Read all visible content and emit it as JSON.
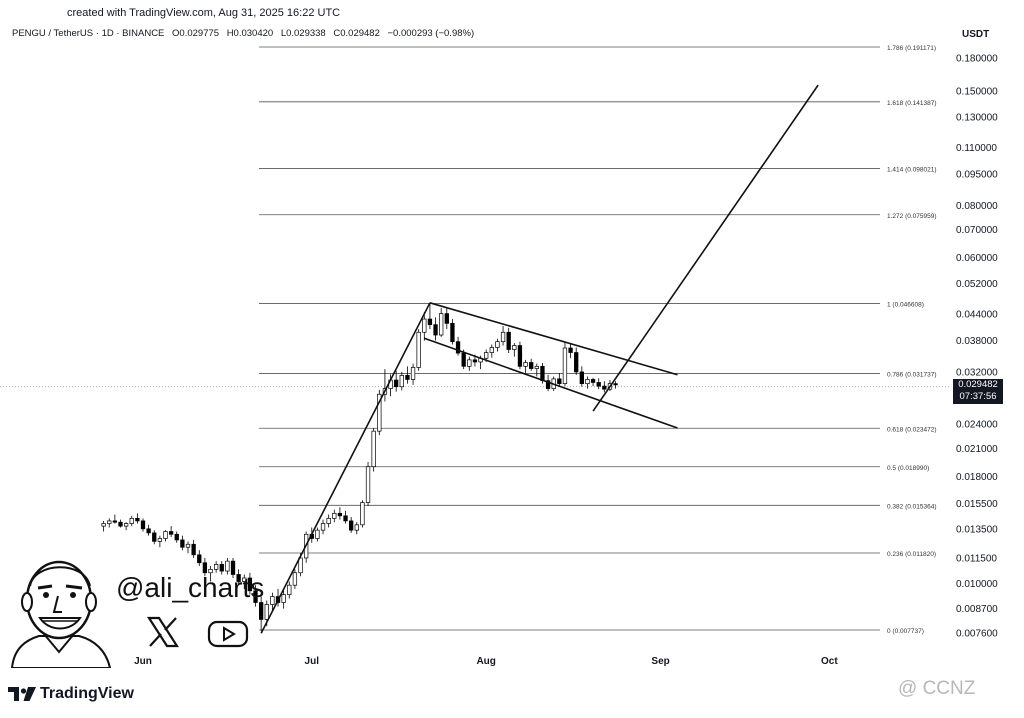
{
  "caption": "created with TradingView.com, Aug 31, 2025 16:22 UTC",
  "legend": {
    "symbol": "PENGU / TetherUS · 1D · BINANCE",
    "open": "O0.029775",
    "high": "H0.030420",
    "low": "L0.029338",
    "close": "C0.029482",
    "change": "−0.000293 (−0.98%)"
  },
  "currency": "USDT",
  "price_tag": {
    "price": "0.029482",
    "countdown": "07:37:56"
  },
  "brand": "TradingView",
  "handle": "@ali_charts",
  "watermark": "@ CCNZ",
  "icons": {
    "x": "x-logo-icon",
    "youtube": "youtube-play-icon",
    "avatar": "cartoon-avatar-icon",
    "brand": "tradingview-logo-icon"
  },
  "colors": {
    "candle_up": "#ffffff",
    "candle_down": "#000000",
    "lines": "#555555",
    "tag_bg": "#131722"
  },
  "chart_data": {
    "type": "candlestick",
    "scale": "log",
    "ylim": [
      0.0074,
      0.2
    ],
    "y_ticks": [
      "0.180000",
      "0.150000",
      "0.130000",
      "0.110000",
      "0.095000",
      "0.080000",
      "0.070000",
      "0.060000",
      "0.052000",
      "0.044000",
      "0.038000",
      "0.032000",
      "0.024000",
      "0.021000",
      "0.018000",
      "0.015500",
      "0.013500",
      "0.011500",
      "0.010000",
      "0.008700",
      "0.007600"
    ],
    "x_ticks": [
      {
        "label": "Jun",
        "date": "2025-06-01"
      },
      {
        "label": "Jul",
        "date": "2025-07-01"
      },
      {
        "label": "Aug",
        "date": "2025-08-01"
      },
      {
        "label": "Sep",
        "date": "2025-09-01"
      },
      {
        "label": "Oct",
        "date": "2025-10-01"
      }
    ],
    "fib_levels": [
      {
        "label": "1.786 (0.191171)",
        "value": 0.191171
      },
      {
        "label": "1.618 (0.141387)",
        "value": 0.141387
      },
      {
        "label": "1.414 (0.098021)",
        "value": 0.098021
      },
      {
        "label": "1.272 (0.075959)",
        "value": 0.075959
      },
      {
        "label": "1 (0.046608)",
        "value": 0.046608
      },
      {
        "label": "0.786 (0.031737)",
        "value": 0.031737
      },
      {
        "label": "0.618 (0.023472)",
        "value": 0.023472
      },
      {
        "label": "0.5 (0.018990)",
        "value": 0.01899
      },
      {
        "label": "0.382 (0.015364)",
        "value": 0.015364
      },
      {
        "label": "0.236 (0.011820)",
        "value": 0.01182
      },
      {
        "label": "0 (0.007737)",
        "value": 0.007737
      }
    ],
    "last_price": 0.029482,
    "trend_lines": [
      {
        "from": [
          "2025-06-22",
          0.0076
        ],
        "to": [
          "2025-07-22",
          0.0468
        ]
      },
      {
        "from": [
          "2025-07-22",
          0.0468
        ],
        "to": [
          "2025-09-04",
          0.0315
        ]
      },
      {
        "from": [
          "2025-07-21",
          0.0385
        ],
        "to": [
          "2025-09-04",
          0.0235
        ]
      },
      {
        "from": [
          "2025-08-20",
          0.0258
        ],
        "to": [
          "2025-09-29",
          0.155
        ]
      }
    ],
    "candles": [
      [
        "2025-05-25",
        0.0137,
        0.0141,
        0.0133,
        0.0139
      ],
      [
        "2025-05-26",
        0.0139,
        0.0143,
        0.0136,
        0.0141
      ],
      [
        "2025-05-27",
        0.0141,
        0.0146,
        0.0139,
        0.014
      ],
      [
        "2025-05-28",
        0.014,
        0.0142,
        0.0136,
        0.0137
      ],
      [
        "2025-05-29",
        0.0137,
        0.014,
        0.0134,
        0.0139
      ],
      [
        "2025-05-30",
        0.0139,
        0.0145,
        0.0137,
        0.0143
      ],
      [
        "2025-05-31",
        0.0143,
        0.0147,
        0.0139,
        0.0141
      ],
      [
        "2025-06-01",
        0.0141,
        0.0143,
        0.0133,
        0.0135
      ],
      [
        "2025-06-02",
        0.0135,
        0.0138,
        0.013,
        0.0132
      ],
      [
        "2025-06-03",
        0.0132,
        0.0134,
        0.0124,
        0.0126
      ],
      [
        "2025-06-04",
        0.0126,
        0.013,
        0.0122,
        0.0128
      ],
      [
        "2025-06-05",
        0.0128,
        0.0134,
        0.0126,
        0.0133
      ],
      [
        "2025-06-06",
        0.0133,
        0.0137,
        0.0129,
        0.0131
      ],
      [
        "2025-06-07",
        0.0131,
        0.0133,
        0.0125,
        0.0127
      ],
      [
        "2025-06-08",
        0.0127,
        0.013,
        0.012,
        0.0122
      ],
      [
        "2025-06-09",
        0.0122,
        0.0126,
        0.0118,
        0.0124
      ],
      [
        "2025-06-10",
        0.0124,
        0.0127,
        0.0115,
        0.0117
      ],
      [
        "2025-06-11",
        0.0117,
        0.012,
        0.011,
        0.0112
      ],
      [
        "2025-06-12",
        0.0112,
        0.0115,
        0.0104,
        0.0106
      ],
      [
        "2025-06-13",
        0.0106,
        0.011,
        0.0101,
        0.0108
      ],
      [
        "2025-06-14",
        0.0108,
        0.0113,
        0.0106,
        0.0111
      ],
      [
        "2025-06-15",
        0.0111,
        0.0113,
        0.0105,
        0.0107
      ],
      [
        "2025-06-16",
        0.0107,
        0.0115,
        0.0105,
        0.0113
      ],
      [
        "2025-06-17",
        0.0113,
        0.0115,
        0.0103,
        0.0105
      ],
      [
        "2025-06-18",
        0.0105,
        0.0108,
        0.0099,
        0.0101
      ],
      [
        "2025-06-19",
        0.0101,
        0.0105,
        0.0097,
        0.0103
      ],
      [
        "2025-06-20",
        0.0103,
        0.0106,
        0.0094,
        0.0096
      ],
      [
        "2025-06-21",
        0.0096,
        0.0099,
        0.0088,
        0.009
      ],
      [
        "2025-06-22",
        0.009,
        0.0093,
        0.0077,
        0.0082
      ],
      [
        "2025-06-23",
        0.0082,
        0.0091,
        0.0079,
        0.0089
      ],
      [
        "2025-06-24",
        0.0089,
        0.0095,
        0.0086,
        0.0093
      ],
      [
        "2025-06-25",
        0.0093,
        0.0097,
        0.0088,
        0.009
      ],
      [
        "2025-06-26",
        0.009,
        0.0096,
        0.0087,
        0.0094
      ],
      [
        "2025-06-27",
        0.0094,
        0.0101,
        0.0092,
        0.0099
      ],
      [
        "2025-06-28",
        0.0099,
        0.0108,
        0.0097,
        0.0106
      ],
      [
        "2025-06-29",
        0.0106,
        0.0118,
        0.0104,
        0.0115
      ],
      [
        "2025-06-30",
        0.0115,
        0.0133,
        0.0112,
        0.0131
      ],
      [
        "2025-07-01",
        0.0131,
        0.0136,
        0.0125,
        0.0128
      ],
      [
        "2025-07-02",
        0.0128,
        0.0136,
        0.0126,
        0.0134
      ],
      [
        "2025-07-03",
        0.0134,
        0.0142,
        0.0131,
        0.0139
      ],
      [
        "2025-07-04",
        0.0139,
        0.0146,
        0.0136,
        0.0143
      ],
      [
        "2025-07-05",
        0.0143,
        0.015,
        0.014,
        0.0147
      ],
      [
        "2025-07-06",
        0.0147,
        0.0152,
        0.0142,
        0.0145
      ],
      [
        "2025-07-07",
        0.0145,
        0.0149,
        0.0139,
        0.0141
      ],
      [
        "2025-07-08",
        0.0141,
        0.0144,
        0.0132,
        0.0134
      ],
      [
        "2025-07-09",
        0.0134,
        0.014,
        0.0131,
        0.0138
      ],
      [
        "2025-07-10",
        0.0138,
        0.0158,
        0.0136,
        0.0156
      ],
      [
        "2025-07-11",
        0.0156,
        0.0195,
        0.0153,
        0.019
      ],
      [
        "2025-07-12",
        0.019,
        0.0235,
        0.0185,
        0.0231
      ],
      [
        "2025-07-13",
        0.0231,
        0.029,
        0.0226,
        0.0283
      ],
      [
        "2025-07-14",
        0.0283,
        0.0325,
        0.0272,
        0.0292
      ],
      [
        "2025-07-15",
        0.0292,
        0.0316,
        0.028,
        0.0306
      ],
      [
        "2025-07-16",
        0.0306,
        0.0322,
        0.0287,
        0.0295
      ],
      [
        "2025-07-17",
        0.0295,
        0.032,
        0.0289,
        0.0314
      ],
      [
        "2025-07-18",
        0.0314,
        0.033,
        0.03,
        0.0307
      ],
      [
        "2025-07-19",
        0.0307,
        0.0335,
        0.0298,
        0.0328
      ],
      [
        "2025-07-20",
        0.0328,
        0.0405,
        0.0322,
        0.0398
      ],
      [
        "2025-07-21",
        0.0398,
        0.0445,
        0.038,
        0.0428
      ],
      [
        "2025-07-22",
        0.0428,
        0.0466,
        0.0405,
        0.0415
      ],
      [
        "2025-07-23",
        0.0415,
        0.0432,
        0.038,
        0.0392
      ],
      [
        "2025-07-24",
        0.0392,
        0.0455,
        0.0388,
        0.0441
      ],
      [
        "2025-07-25",
        0.0441,
        0.0455,
        0.0405,
        0.0418
      ],
      [
        "2025-07-26",
        0.0418,
        0.0428,
        0.0372,
        0.0378
      ],
      [
        "2025-07-27",
        0.0378,
        0.0388,
        0.035,
        0.0355
      ],
      [
        "2025-07-28",
        0.0355,
        0.0362,
        0.0325,
        0.033
      ],
      [
        "2025-07-29",
        0.033,
        0.0348,
        0.0322,
        0.0342
      ],
      [
        "2025-07-30",
        0.0342,
        0.0352,
        0.033,
        0.0338
      ],
      [
        "2025-07-31",
        0.0338,
        0.035,
        0.0325,
        0.0345
      ],
      [
        "2025-08-01",
        0.0345,
        0.0362,
        0.0338,
        0.0356
      ],
      [
        "2025-08-02",
        0.0356,
        0.0372,
        0.0346,
        0.0366
      ],
      [
        "2025-08-03",
        0.0366,
        0.0384,
        0.0358,
        0.0378
      ],
      [
        "2025-08-04",
        0.0378,
        0.0412,
        0.037,
        0.0398
      ],
      [
        "2025-08-05",
        0.0398,
        0.0408,
        0.0355,
        0.0362
      ],
      [
        "2025-08-06",
        0.0362,
        0.0375,
        0.0348,
        0.037
      ],
      [
        "2025-08-07",
        0.037,
        0.0378,
        0.0325,
        0.033
      ],
      [
        "2025-08-08",
        0.033,
        0.0342,
        0.0318,
        0.0337
      ],
      [
        "2025-08-09",
        0.0337,
        0.0344,
        0.0322,
        0.0326
      ],
      [
        "2025-08-10",
        0.0326,
        0.0335,
        0.0312,
        0.033
      ],
      [
        "2025-08-11",
        0.033,
        0.0336,
        0.03,
        0.0305
      ],
      [
        "2025-08-12",
        0.0305,
        0.0315,
        0.0288,
        0.0292
      ],
      [
        "2025-08-13",
        0.0292,
        0.0312,
        0.0288,
        0.0308
      ],
      [
        "2025-08-14",
        0.0308,
        0.0318,
        0.0296,
        0.03
      ],
      [
        "2025-08-15",
        0.03,
        0.0378,
        0.0296,
        0.0365
      ],
      [
        "2025-08-16",
        0.0365,
        0.0375,
        0.0345,
        0.0356
      ],
      [
        "2025-08-17",
        0.0356,
        0.0366,
        0.0315,
        0.032
      ],
      [
        "2025-08-18",
        0.032,
        0.033,
        0.0295,
        0.03
      ],
      [
        "2025-08-19",
        0.03,
        0.0312,
        0.0292,
        0.0307
      ],
      [
        "2025-08-20",
        0.0307,
        0.031,
        0.0296,
        0.0302
      ],
      [
        "2025-08-21",
        0.0302,
        0.0309,
        0.0291,
        0.0296
      ],
      [
        "2025-08-22",
        0.0296,
        0.0304,
        0.0286,
        0.0291
      ],
      [
        "2025-08-23",
        0.0291,
        0.0306,
        0.0288,
        0.03
      ],
      [
        "2025-08-24",
        0.03,
        0.0304,
        0.0292,
        0.0298
      ]
    ]
  }
}
